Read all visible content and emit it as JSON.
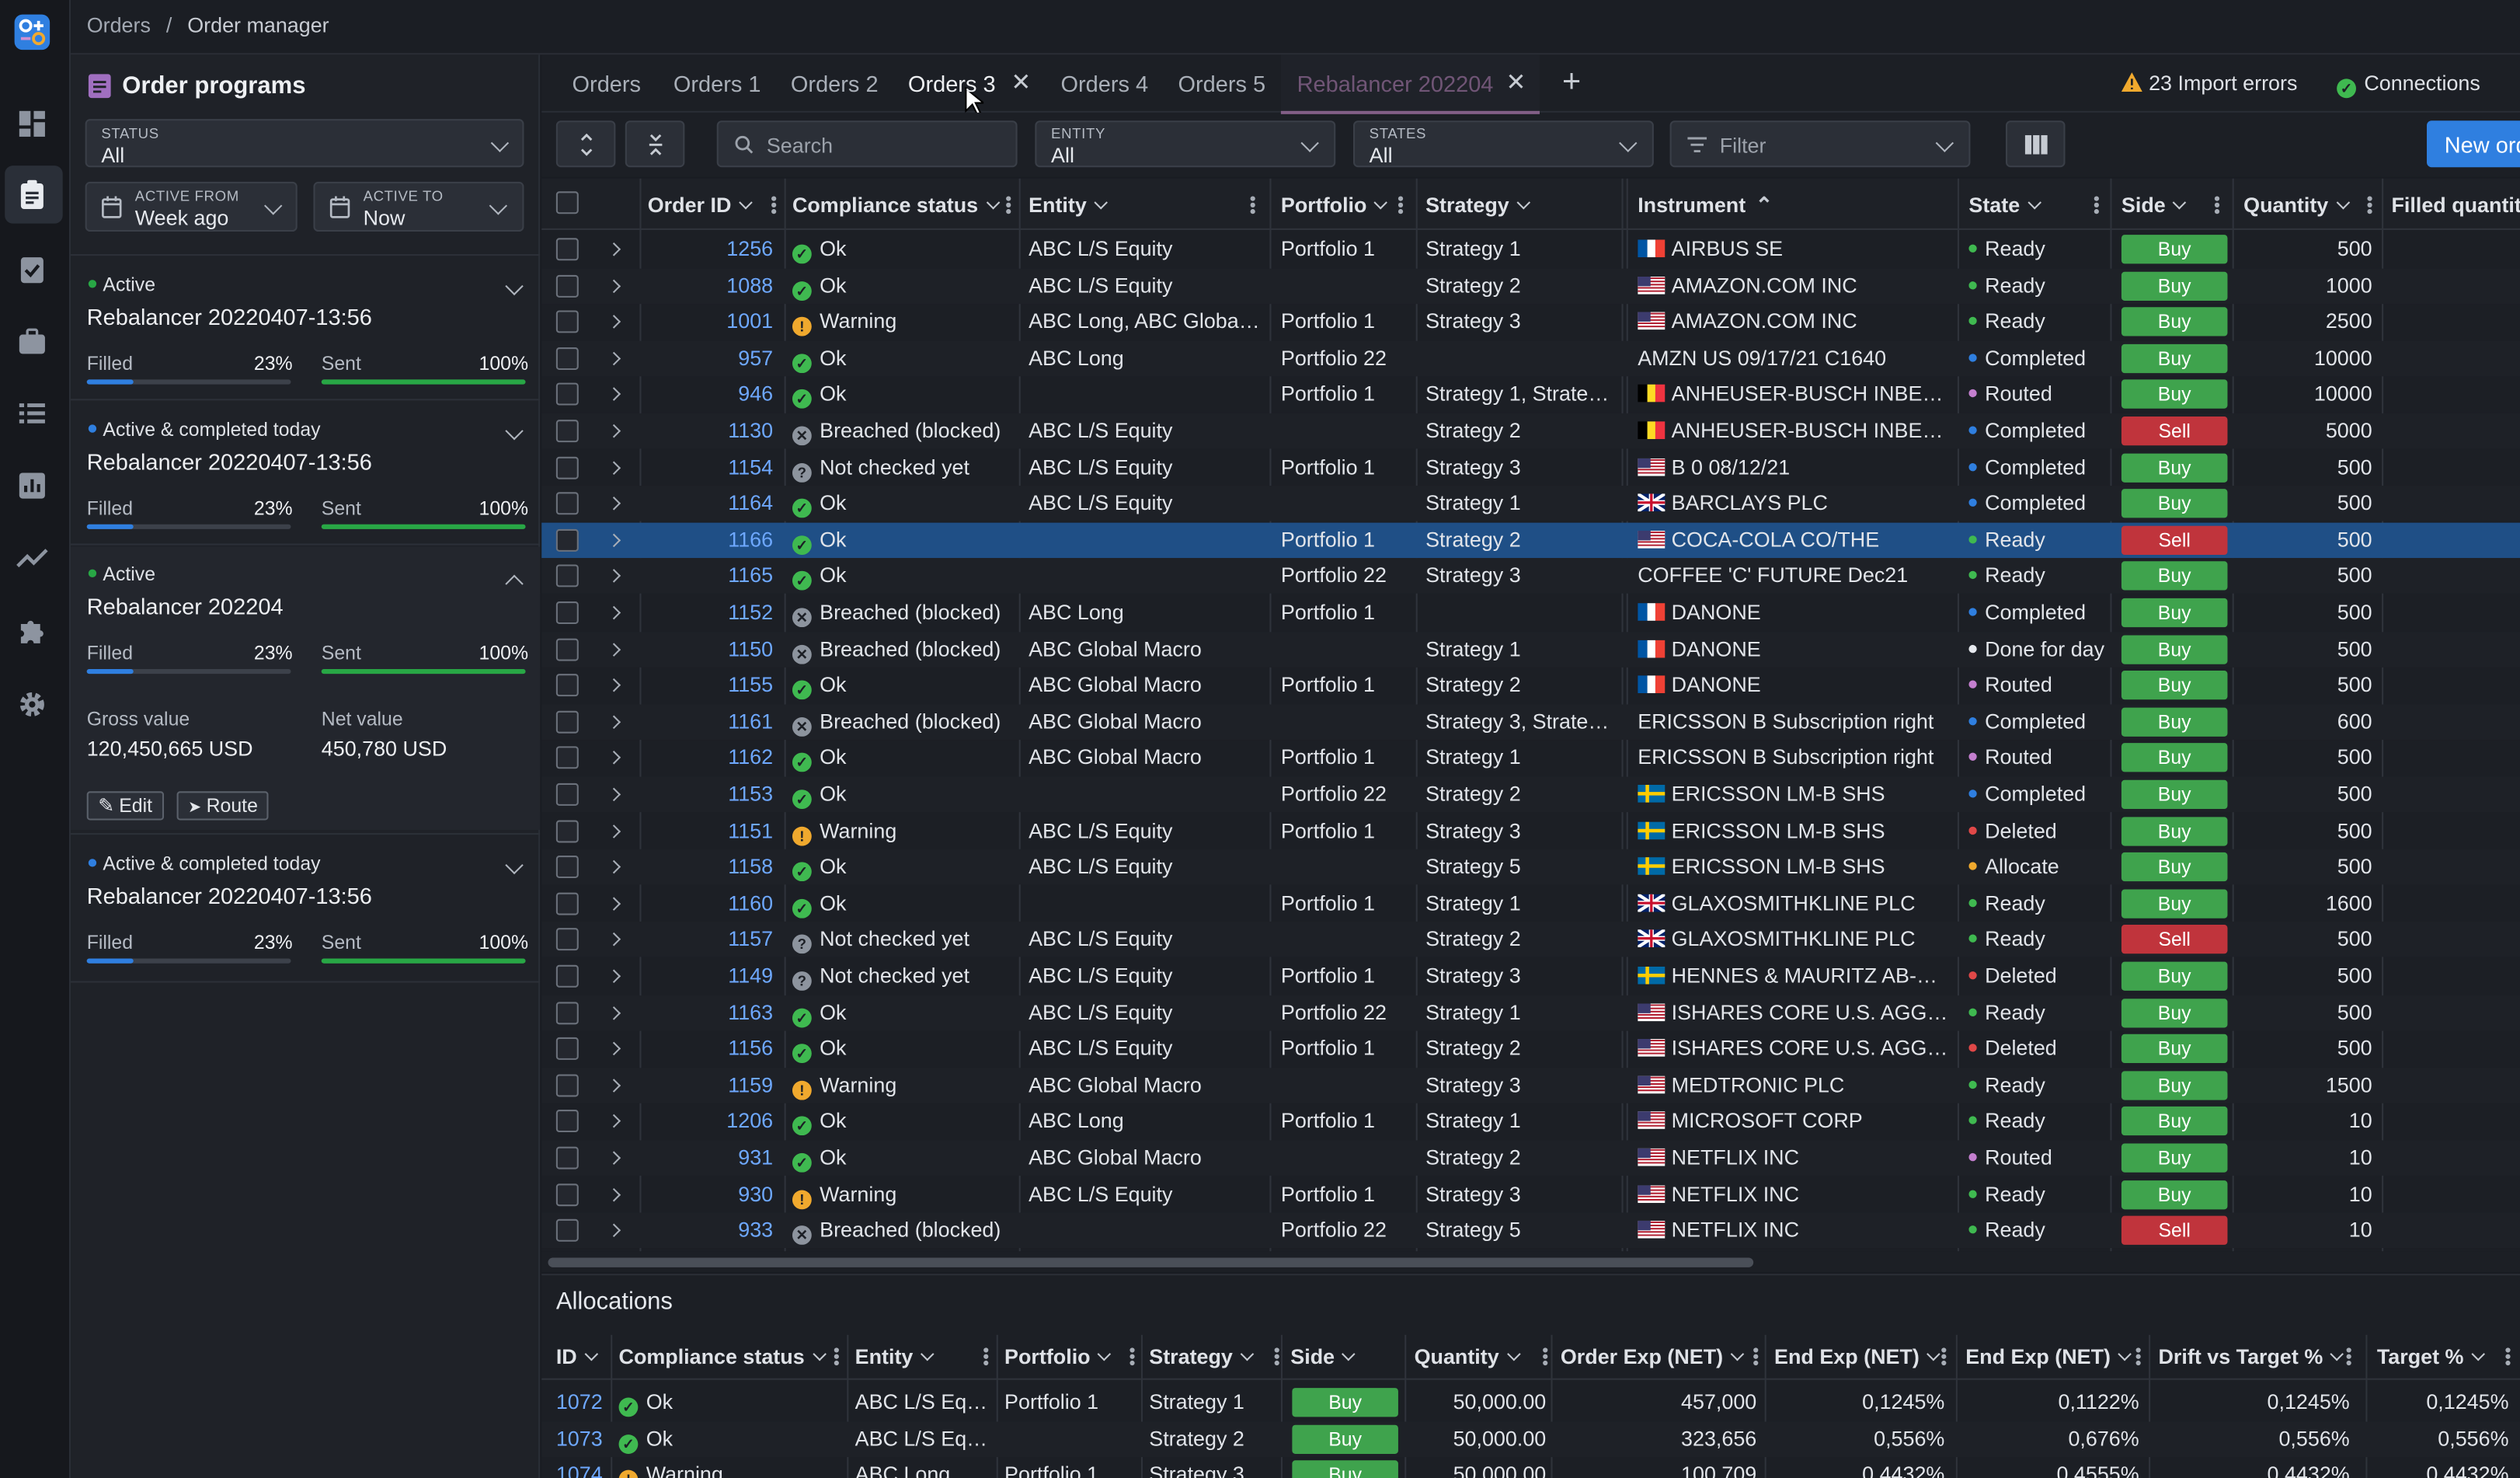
{
  "breadcrumb": {
    "root": "Orders",
    "sep": "/",
    "current": "Order manager"
  },
  "sidebar_left": {
    "title": "Order programs",
    "status": {
      "label": "STATUS",
      "value": "All"
    },
    "active_from": {
      "label": "ACTIVE FROM",
      "value": "Week ago"
    },
    "active_to": {
      "label": "ACTIVE TO",
      "value": "Now"
    },
    "cards": [
      {
        "status": "Active",
        "status_color": "#28a745",
        "name": "Rebalancer 20220407-13:56",
        "filled_label": "Filled",
        "filled": "23%",
        "filled_frac": 0.23,
        "sent_label": "Sent",
        "sent": "100%",
        "sent_frac": 1.0
      },
      {
        "status": "Active & completed today",
        "status_color": "#2f7fe0",
        "name": "Rebalancer 20220407-13:56",
        "filled_label": "Filled",
        "filled": "23%",
        "filled_frac": 0.23,
        "sent_label": "Sent",
        "sent": "100%",
        "sent_frac": 1.0
      },
      {
        "status": "Active",
        "status_color": "#28a745",
        "name": "Rebalancer 202204",
        "filled_label": "Filled",
        "filled": "23%",
        "filled_frac": 0.23,
        "sent_label": "Sent",
        "sent": "100%",
        "sent_frac": 1.0,
        "gross_label": "Gross value",
        "gross": "120,450,665 USD",
        "net_label": "Net value",
        "net": "450,780 USD",
        "edit": "Edit",
        "route": "Route"
      },
      {
        "status": "Active & completed today",
        "status_color": "#2f7fe0",
        "name": "Rebalancer 20220407-13:56",
        "filled_label": "Filled",
        "filled": "23%",
        "filled_frac": 0.23,
        "sent_label": "Sent",
        "sent": "100%",
        "sent_frac": 1.0
      }
    ]
  },
  "tabs": [
    "Orders",
    "Orders 1",
    "Orders 2",
    "Orders 3",
    "Orders 4",
    "Orders 5",
    "Rebalancer 202204"
  ],
  "header_right": {
    "import_errors": "23 Import errors",
    "connections": "Connections"
  },
  "toolbar": {
    "search_placeholder": "Search",
    "entity": {
      "label": "ENTITY",
      "value": "All"
    },
    "states": {
      "label": "STATES",
      "value": "All"
    },
    "filter_placeholder": "Filter",
    "new_order": "New order"
  },
  "columns": [
    "Order ID",
    "Compliance status",
    "Entity",
    "Portfolio",
    "Strategy",
    "Instrument",
    "State",
    "Side",
    "Quantity",
    "Filled quantity"
  ],
  "rows": [
    {
      "id": "1256",
      "comp": "Ok",
      "entity": "ABC L/S Equity",
      "port": "Portfolio 1",
      "strat": "Strategy 1",
      "flag": "fr",
      "instr": "AIRBUS SE",
      "state": "Ready",
      "side": "Buy",
      "qty": "500"
    },
    {
      "id": "1088",
      "comp": "Ok",
      "entity": "ABC L/S Equity",
      "port": "",
      "strat": "Strategy 2",
      "flag": "us",
      "instr": "AMAZON.COM INC",
      "state": "Ready",
      "side": "Buy",
      "qty": "1000"
    },
    {
      "id": "1001",
      "comp": "Warning",
      "entity": "ABC Long, ABC Global M...",
      "port": "Portfolio 1",
      "strat": "Strategy 3",
      "flag": "us",
      "instr": "AMAZON.COM INC",
      "state": "Ready",
      "side": "Buy",
      "qty": "2500"
    },
    {
      "id": "957",
      "comp": "Ok",
      "entity": "ABC Long",
      "port": "Portfolio 22",
      "strat": "",
      "flag": "",
      "instr": "AMZN US 09/17/21 C1640",
      "state": "Completed",
      "side": "Buy",
      "qty": "10000"
    },
    {
      "id": "946",
      "comp": "Ok",
      "entity": "",
      "port": "Portfolio 1",
      "strat": "Strategy 1, Strategy 2...",
      "flag": "be",
      "instr": "ANHEUSER-BUSCH INBEV S...",
      "state": "Routed",
      "side": "Buy",
      "qty": "10000"
    },
    {
      "id": "1130",
      "comp": "Breached (blocked)",
      "entity": "ABC L/S Equity",
      "port": "",
      "strat": "Strategy 2",
      "flag": "be",
      "instr": "ANHEUSER-BUSCH INBEV S...",
      "state": "Completed",
      "side": "Sell",
      "qty": "5000"
    },
    {
      "id": "1154",
      "comp": "Not checked yet",
      "entity": "ABC L/S Equity",
      "port": "Portfolio 1",
      "strat": "Strategy 3",
      "flag": "us",
      "instr": "B 0 08/12/21",
      "state": "Completed",
      "side": "Buy",
      "qty": "500"
    },
    {
      "id": "1164",
      "comp": "Ok",
      "entity": "ABC L/S Equity",
      "port": "",
      "strat": "Strategy 1",
      "flag": "gb",
      "instr": "BARCLAYS PLC",
      "state": "Completed",
      "side": "Buy",
      "qty": "500"
    },
    {
      "id": "1166",
      "comp": "Ok",
      "entity": "",
      "port": "Portfolio 1",
      "strat": "Strategy 2",
      "flag": "us",
      "instr": "COCA-COLA CO/THE",
      "state": "Ready",
      "side": "Sell",
      "qty": "500",
      "selected": true
    },
    {
      "id": "1165",
      "comp": "Ok",
      "entity": "",
      "port": "Portfolio 22",
      "strat": "Strategy 3",
      "flag": "",
      "instr": "COFFEE 'C' FUTURE Dec21",
      "state": "Ready",
      "side": "Buy",
      "qty": "500"
    },
    {
      "id": "1152",
      "comp": "Breached (blocked)",
      "entity": "ABC Long",
      "port": "Portfolio 1",
      "strat": "",
      "flag": "fr",
      "instr": "DANONE",
      "state": "Completed",
      "side": "Buy",
      "qty": "500"
    },
    {
      "id": "1150",
      "comp": "Breached (blocked)",
      "entity": "ABC Global Macro",
      "port": "",
      "strat": "Strategy 1",
      "flag": "fr",
      "instr": "DANONE",
      "state": "Done for day",
      "side": "Buy",
      "qty": "500"
    },
    {
      "id": "1155",
      "comp": "Ok",
      "entity": "ABC Global Macro",
      "port": "Portfolio 1",
      "strat": "Strategy 2",
      "flag": "fr",
      "instr": "DANONE",
      "state": "Routed",
      "side": "Buy",
      "qty": "500"
    },
    {
      "id": "1161",
      "comp": "Breached (blocked)",
      "entity": "ABC Global Macro",
      "port": "",
      "strat": "Strategy 3, Strategy 2",
      "flag": "",
      "instr": "ERICSSON B Subscription right",
      "state": "Completed",
      "side": "Buy",
      "qty": "600"
    },
    {
      "id": "1162",
      "comp": "Ok",
      "entity": "ABC Global Macro",
      "port": "Portfolio 1",
      "strat": "Strategy 1",
      "flag": "",
      "instr": "ERICSSON B Subscription right",
      "state": "Routed",
      "side": "Buy",
      "qty": "500"
    },
    {
      "id": "1153",
      "comp": "Ok",
      "entity": "",
      "port": "Portfolio 22",
      "strat": "Strategy 2",
      "flag": "se",
      "instr": "ERICSSON LM-B SHS",
      "state": "Completed",
      "side": "Buy",
      "qty": "500"
    },
    {
      "id": "1151",
      "comp": "Warning",
      "entity": "ABC L/S Equity",
      "port": "Portfolio 1",
      "strat": "Strategy 3",
      "flag": "se",
      "instr": "ERICSSON LM-B SHS",
      "state": "Deleted",
      "side": "Buy",
      "qty": "500"
    },
    {
      "id": "1158",
      "comp": "Ok",
      "entity": "ABC L/S Equity",
      "port": "",
      "strat": "Strategy 5",
      "flag": "se",
      "instr": "ERICSSON LM-B SHS",
      "state": "Allocate",
      "side": "Buy",
      "qty": "500"
    },
    {
      "id": "1160",
      "comp": "Ok",
      "entity": "",
      "port": "Portfolio 1",
      "strat": "Strategy 1",
      "flag": "gb",
      "instr": "GLAXOSMITHKLINE PLC",
      "state": "Ready",
      "side": "Buy",
      "qty": "1600"
    },
    {
      "id": "1157",
      "comp": "Not checked yet",
      "entity": "ABC L/S Equity",
      "port": "",
      "strat": "Strategy 2",
      "flag": "gb",
      "instr": "GLAXOSMITHKLINE PLC",
      "state": "Ready",
      "side": "Sell",
      "qty": "500"
    },
    {
      "id": "1149",
      "comp": "Not checked yet",
      "entity": "ABC L/S Equity",
      "port": "Portfolio 1",
      "strat": "Strategy 3",
      "flag": "se",
      "instr": "HENNES & MAURITZ AB-B S...",
      "state": "Deleted",
      "side": "Buy",
      "qty": "500"
    },
    {
      "id": "1163",
      "comp": "Ok",
      "entity": "ABC L/S Equity",
      "port": "Portfolio 22",
      "strat": "Strategy 1",
      "flag": "us",
      "instr": "ISHARES CORE U.S. AGGREG...",
      "state": "Ready",
      "side": "Buy",
      "qty": "500"
    },
    {
      "id": "1156",
      "comp": "Ok",
      "entity": "ABC L/S Equity",
      "port": "Portfolio 1",
      "strat": "Strategy 2",
      "flag": "us",
      "instr": "ISHARES CORE U.S. AGGREG...",
      "state": "Deleted",
      "side": "Buy",
      "qty": "500"
    },
    {
      "id": "1159",
      "comp": "Warning",
      "entity": "ABC Global Macro",
      "port": "",
      "strat": "Strategy 3",
      "flag": "us",
      "instr": "MEDTRONIC PLC",
      "state": "Ready",
      "side": "Buy",
      "qty": "1500"
    },
    {
      "id": "1206",
      "comp": "Ok",
      "entity": "ABC Long",
      "port": "Portfolio 1",
      "strat": "Strategy 1",
      "flag": "us",
      "instr": "MICROSOFT CORP",
      "state": "Ready",
      "side": "Buy",
      "qty": "10"
    },
    {
      "id": "931",
      "comp": "Ok",
      "entity": "ABC Global Macro",
      "port": "",
      "strat": "Strategy 2",
      "flag": "us",
      "instr": "NETFLIX INC",
      "state": "Routed",
      "side": "Buy",
      "qty": "10"
    },
    {
      "id": "930",
      "comp": "Warning",
      "entity": "ABC L/S Equity",
      "port": "Portfolio 1",
      "strat": "Strategy 3",
      "flag": "us",
      "instr": "NETFLIX INC",
      "state": "Ready",
      "side": "Buy",
      "qty": "10"
    },
    {
      "id": "933",
      "comp": "Breached (blocked)",
      "entity": "",
      "port": "Portfolio 22",
      "strat": "Strategy 5",
      "flag": "us",
      "instr": "NETFLIX INC",
      "state": "Ready",
      "side": "Sell",
      "qty": "10"
    }
  ],
  "allocations": {
    "title": "Allocations",
    "columns": [
      "ID",
      "Compliance status",
      "Entity",
      "Portfolio",
      "Strategy",
      "Side",
      "Quantity",
      "Order Exp (NET)",
      "End Exp (NET)",
      "End Exp (NET)",
      "Drift vs Target %",
      "Target %"
    ],
    "rows": [
      {
        "id": "1072",
        "comp": "Ok",
        "entity": "ABC L/S Equity",
        "port": "Portfolio 1",
        "strat": "Strategy 1",
        "side": "Buy",
        "qty": "50,000.00",
        "oexp": "457,000",
        "eexp1": "0,1245%",
        "eexp2": "0,1122%",
        "drift": "0,1245%",
        "target": "0,1245%"
      },
      {
        "id": "1073",
        "comp": "Ok",
        "entity": "ABC L/S Equity",
        "port": "",
        "strat": "Strategy 2",
        "side": "Buy",
        "qty": "50,000.00",
        "oexp": "323,656",
        "eexp1": "0,556%",
        "eexp2": "0,676%",
        "drift": "0,556%",
        "target": "0,556%"
      },
      {
        "id": "1074",
        "comp": "Warning",
        "entity": "ABC Long",
        "port": "Portfolio 1",
        "strat": "Strategy 3",
        "side": "Buy",
        "qty": "50,000.00",
        "oexp": "100,709",
        "eexp1": "0,4432%",
        "eexp2": "0,4555%",
        "drift": "0,4432%",
        "target": "0,4432%"
      }
    ]
  },
  "colors": {
    "accent": "#2f7fe0",
    "buy": "#3fa34d",
    "sell": "#c0343c",
    "ok": "#3fb950",
    "warning": "#f0a92e",
    "rebalancer_tab": "#d08fd0"
  }
}
